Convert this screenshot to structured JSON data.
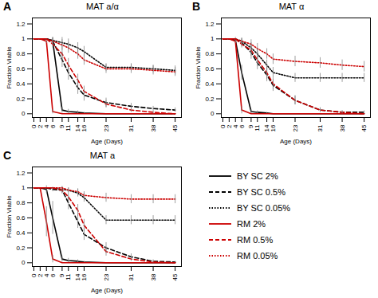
{
  "chart_data": [
    {
      "type": "line",
      "title": "MAT a/α",
      "annotations": [
        "A"
      ],
      "xlabel": "Age (Days)",
      "ylabel": "Fraction Viable",
      "xlim": [
        -0.5,
        47
      ],
      "ylim": [
        -0.05,
        1.28
      ],
      "xticks": [
        0,
        2,
        4,
        6,
        9,
        11,
        14,
        16,
        23,
        31,
        38,
        45
      ],
      "yticks": [
        0.0,
        0.2,
        0.4,
        0.6,
        0.8,
        1.0,
        1.2
      ],
      "grid": false,
      "legend": "lower right",
      "x": [
        0,
        2,
        4,
        6,
        9,
        11,
        14,
        16,
        23,
        31,
        38,
        45
      ],
      "series": [
        {
          "name": "BY SC 2%",
          "color": "#000000",
          "line_style": "solid",
          "values": [
            1.0,
            1.0,
            1.0,
            0.97,
            0.05,
            0.03,
            0.02,
            0.01,
            0.0,
            0.0,
            0.0,
            0.0
          ],
          "yerr": [
            0,
            0,
            0,
            0.04,
            0.04,
            0.03,
            0.02,
            0.01,
            0,
            0,
            0,
            0
          ]
        },
        {
          "name": "BY SC 0.5%",
          "color": "#000000",
          "line_style": "dashed",
          "values": [
            1.0,
            1.0,
            1.0,
            0.97,
            0.72,
            0.55,
            0.35,
            0.25,
            0.15,
            0.1,
            0.07,
            0.05
          ],
          "yerr": [
            0,
            0,
            0,
            0.05,
            0.1,
            0.1,
            0.09,
            0.08,
            0.06,
            0.04,
            0.03,
            0.03
          ]
        },
        {
          "name": "BY SC 0.05%",
          "color": "#000000",
          "line_style": "dotted",
          "values": [
            1.0,
            1.0,
            1.0,
            0.98,
            0.95,
            0.93,
            0.88,
            0.83,
            0.62,
            0.62,
            0.6,
            0.58
          ],
          "yerr": [
            0,
            0,
            0,
            0.04,
            0.07,
            0.07,
            0.07,
            0.07,
            0.05,
            0.05,
            0.05,
            0.06
          ]
        },
        {
          "name": "RM 2%",
          "color": "#cc0000",
          "line_style": "solid",
          "values": [
            1.0,
            1.0,
            0.97,
            0.03,
            0.0,
            0.0,
            0.0,
            0.0,
            0.0,
            0.0,
            0.0,
            0.0
          ],
          "yerr": [
            0,
            0,
            0.03,
            0.03,
            0,
            0,
            0,
            0,
            0,
            0,
            0,
            0
          ]
        },
        {
          "name": "RM 0.5%",
          "color": "#cc0000",
          "line_style": "dashed",
          "values": [
            1.0,
            1.0,
            1.0,
            0.93,
            0.8,
            0.65,
            0.45,
            0.3,
            0.13,
            0.05,
            0.02,
            0.0
          ],
          "yerr": [
            0,
            0,
            0,
            0.05,
            0.08,
            0.09,
            0.08,
            0.07,
            0.05,
            0.03,
            0.02,
            0.0
          ]
        },
        {
          "name": "RM 0.05%",
          "color": "#cc0000",
          "line_style": "dotted",
          "values": [
            1.0,
            1.0,
            1.0,
            0.97,
            0.92,
            0.88,
            0.8,
            0.72,
            0.6,
            0.6,
            0.58,
            0.56
          ],
          "yerr": [
            0,
            0,
            0,
            0.04,
            0.07,
            0.07,
            0.07,
            0.07,
            0.06,
            0.06,
            0.06,
            0.06
          ]
        }
      ]
    },
    {
      "type": "line",
      "title": "MAT α",
      "annotations": [
        "B"
      ],
      "xlabel": "Age (Days)",
      "ylabel": "Fraction Viable",
      "xlim": [
        -0.5,
        47
      ],
      "ylim": [
        -0.05,
        1.28
      ],
      "xticks": [
        0,
        2,
        4,
        6,
        9,
        11,
        14,
        16,
        23,
        31,
        38,
        45
      ],
      "yticks": [
        0.0,
        0.2,
        0.4,
        0.6,
        0.8,
        1.0,
        1.2
      ],
      "grid": false,
      "legend": "lower right",
      "x": [
        0,
        2,
        4,
        6,
        9,
        11,
        14,
        16,
        23,
        31,
        38,
        45
      ],
      "series": [
        {
          "name": "BY SC 2%",
          "color": "#000000",
          "line_style": "solid",
          "values": [
            1.0,
            1.0,
            0.98,
            0.55,
            0.03,
            0.02,
            0.01,
            0.0,
            0.0,
            0.0,
            0.0,
            0.0
          ],
          "yerr": [
            0,
            0,
            0.04,
            0.1,
            0.03,
            0.02,
            0.01,
            0,
            0,
            0,
            0,
            0
          ]
        },
        {
          "name": "BY SC 0.5%",
          "color": "#000000",
          "line_style": "dashed",
          "values": [
            1.0,
            1.0,
            1.0,
            0.95,
            0.82,
            0.68,
            0.52,
            0.38,
            0.18,
            0.05,
            0.02,
            0.02
          ],
          "yerr": [
            0,
            0,
            0,
            0.05,
            0.09,
            0.09,
            0.09,
            0.08,
            0.06,
            0.03,
            0.02,
            0.02
          ]
        },
        {
          "name": "BY SC 0.05%",
          "color": "#000000",
          "line_style": "dotted",
          "values": [
            1.0,
            1.0,
            1.0,
            0.97,
            0.88,
            0.8,
            0.65,
            0.55,
            0.48,
            0.48,
            0.48,
            0.48
          ],
          "yerr": [
            0,
            0,
            0,
            0.04,
            0.07,
            0.07,
            0.07,
            0.07,
            0.06,
            0.06,
            0.06,
            0.06
          ]
        },
        {
          "name": "RM 2%",
          "color": "#cc0000",
          "line_style": "solid",
          "values": [
            1.0,
            1.0,
            0.97,
            0.05,
            0.0,
            0.0,
            0.0,
            0.0,
            0.0,
            0.0,
            0.0,
            0.0
          ],
          "yerr": [
            0,
            0,
            0.03,
            0.05,
            0,
            0,
            0,
            0,
            0,
            0,
            0,
            0
          ]
        },
        {
          "name": "RM 0.5%",
          "color": "#cc0000",
          "line_style": "dashed",
          "values": [
            1.0,
            1.0,
            1.0,
            0.93,
            0.85,
            0.72,
            0.55,
            0.4,
            0.18,
            0.05,
            0.02,
            0.0
          ],
          "yerr": [
            0,
            0,
            0,
            0.05,
            0.08,
            0.09,
            0.09,
            0.08,
            0.06,
            0.03,
            0.02,
            0.0
          ]
        },
        {
          "name": "RM 0.05%",
          "color": "#cc0000",
          "line_style": "dotted",
          "values": [
            1.0,
            1.0,
            1.0,
            0.97,
            0.93,
            0.87,
            0.8,
            0.73,
            0.7,
            0.68,
            0.65,
            0.63
          ],
          "yerr": [
            0,
            0,
            0,
            0.04,
            0.06,
            0.07,
            0.07,
            0.07,
            0.07,
            0.07,
            0.07,
            0.07
          ]
        }
      ]
    },
    {
      "type": "line",
      "title": "MAT a",
      "annotations": [
        "C"
      ],
      "xlabel": "Age (Days)",
      "ylabel": "Fraction Viable",
      "xlim": [
        -0.5,
        47
      ],
      "ylim": [
        -0.05,
        1.28
      ],
      "xticks": [
        0,
        2,
        4,
        6,
        9,
        11,
        14,
        16,
        23,
        31,
        38,
        45
      ],
      "yticks": [
        0.0,
        0.2,
        0.4,
        0.6,
        0.8,
        1.0,
        1.2
      ],
      "grid": false,
      "legend": "lower right",
      "x": [
        0,
        2,
        4,
        6,
        9,
        11,
        14,
        16,
        23,
        31,
        38,
        45
      ],
      "series": [
        {
          "name": "BY SC 2%",
          "color": "#000000",
          "line_style": "solid",
          "values": [
            1.0,
            1.0,
            0.98,
            0.6,
            0.05,
            0.03,
            0.02,
            0.01,
            0.0,
            0.0,
            0.0,
            0.0
          ],
          "yerr": [
            0,
            0,
            0.05,
            0.22,
            0.04,
            0.03,
            0.02,
            0.01,
            0,
            0,
            0,
            0
          ]
        },
        {
          "name": "BY SC 0.5%",
          "color": "#000000",
          "line_style": "dashed",
          "values": [
            1.0,
            1.0,
            1.0,
            0.98,
            0.97,
            0.8,
            0.55,
            0.38,
            0.2,
            0.08,
            0.02,
            0.01
          ],
          "yerr": [
            0,
            0,
            0,
            0.03,
            0.05,
            0.09,
            0.09,
            0.08,
            0.07,
            0.04,
            0.02,
            0.01
          ]
        },
        {
          "name": "BY SC 0.05%",
          "color": "#000000",
          "line_style": "dotted",
          "values": [
            1.0,
            1.0,
            1.0,
            1.0,
            0.98,
            0.97,
            0.93,
            0.87,
            0.57,
            0.57,
            0.57,
            0.57
          ],
          "yerr": [
            0,
            0,
            0,
            0,
            0.03,
            0.03,
            0.05,
            0.06,
            0.06,
            0.06,
            0.06,
            0.06
          ]
        },
        {
          "name": "RM 2%",
          "color": "#cc0000",
          "line_style": "solid",
          "values": [
            1.0,
            1.0,
            0.55,
            0.05,
            0.0,
            0.0,
            0.0,
            0.0,
            0.0,
            0.0,
            0.0,
            0.0
          ],
          "yerr": [
            0,
            0,
            0.2,
            0.05,
            0,
            0,
            0,
            0,
            0,
            0,
            0,
            0
          ]
        },
        {
          "name": "RM 0.5%",
          "color": "#cc0000",
          "line_style": "dashed",
          "values": [
            1.0,
            1.0,
            1.0,
            1.0,
            0.97,
            0.88,
            0.7,
            0.5,
            0.15,
            0.05,
            0.01,
            0.0
          ],
          "yerr": [
            0,
            0,
            0,
            0,
            0.04,
            0.06,
            0.08,
            0.08,
            0.06,
            0.03,
            0.01,
            0
          ]
        },
        {
          "name": "RM 0.05%",
          "color": "#cc0000",
          "line_style": "dotted",
          "values": [
            1.0,
            1.0,
            1.0,
            1.0,
            1.0,
            0.97,
            0.95,
            0.9,
            0.87,
            0.85,
            0.85,
            0.85
          ],
          "yerr": [
            0,
            0,
            0,
            0,
            0,
            0.03,
            0.04,
            0.05,
            0.06,
            0.06,
            0.06,
            0.06
          ]
        }
      ]
    }
  ]
}
